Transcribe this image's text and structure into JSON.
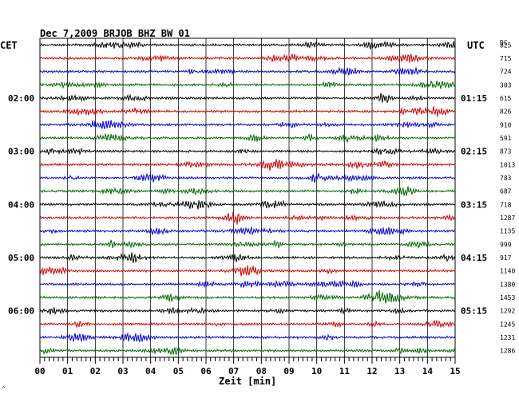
{
  "chart_data": {
    "type": "line",
    "title": "Dec 7,2009   BRJOB BHZ BW 01",
    "left_label": "CET",
    "right_label": "UTC",
    "dc_label": "DC",
    "xlabel": "Zeit [min]",
    "xlim": [
      0,
      15
    ],
    "x_tick_labels": [
      "00",
      "01",
      "02",
      "03",
      "04",
      "05",
      "06",
      "07",
      "08",
      "09",
      "10",
      "11",
      "12",
      "13",
      "14",
      "15"
    ],
    "left_hour_labels": [
      "02:00",
      "03:00",
      "04:00",
      "05:00",
      "06:00"
    ],
    "right_hour_labels": [
      "01:15",
      "02:15",
      "03:15",
      "04:15",
      "05:15"
    ],
    "trace_colors": [
      "#000000",
      "#cc0000",
      "#0000cc",
      "#006600"
    ],
    "dc_offsets": [
      825,
      715,
      724,
      303,
      615,
      826,
      910,
      591,
      873,
      1013,
      783,
      687,
      718,
      1287,
      1135,
      999,
      917,
      1140,
      1380,
      1453,
      1292,
      1245,
      1231,
      1286
    ],
    "grid": true
  },
  "footer_mark": "^"
}
